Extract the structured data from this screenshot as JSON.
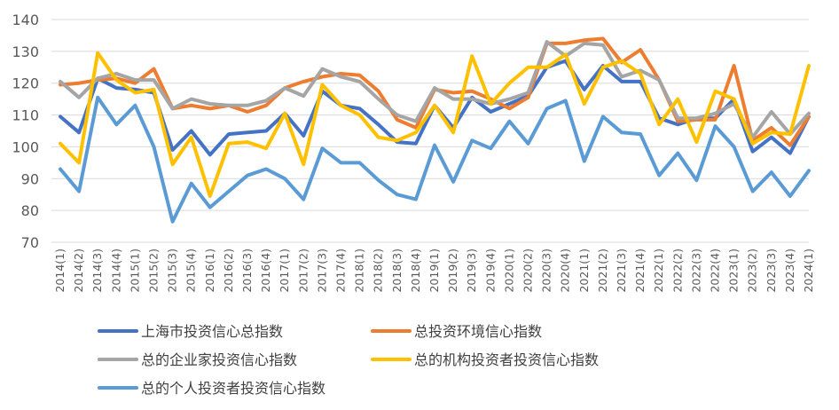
{
  "chart_data": {
    "type": "line",
    "title": "",
    "xlabel": "",
    "ylabel": "",
    "ylim": [
      70,
      140
    ],
    "yticks": [
      70,
      80,
      90,
      100,
      110,
      120,
      130,
      140
    ],
    "grid": "horizontal",
    "legend_position": "bottom",
    "categories": [
      "2014(1)",
      "2014(2)",
      "2014(3)",
      "2014(4)",
      "2015(1)",
      "2015(2)",
      "2015(3)",
      "2015(4)",
      "2016(1)",
      "2016(2)",
      "2016(3)",
      "2016(4)",
      "2017(1)",
      "2017(2)",
      "2017(3)",
      "2017(4)",
      "2018(1)",
      "2018(2)",
      "2018(3)",
      "2018(4)",
      "2019(1)",
      "2019(2)",
      "2019(3)",
      "2019(4)",
      "2020(1)",
      "2020(2)",
      "2020(3)",
      "2020(4)",
      "2021(1)",
      "2021(2)",
      "2021(3)",
      "2021(4)",
      "2022(1)",
      "2022(2)",
      "2022(3)",
      "2022(4)",
      "2023(1)",
      "2023(2)",
      "2023(3)",
      "2023(4)",
      "2024(1)"
    ],
    "series": [
      {
        "name": "上海市投资信心总指数",
        "color": "#4472C4",
        "values": [
          109.5,
          104.5,
          121.5,
          118.5,
          118,
          117,
          99,
          105,
          97.5,
          104,
          104.5,
          105,
          110.5,
          103.5,
          117.5,
          113,
          112,
          107,
          101.5,
          101,
          113,
          106,
          115.5,
          111,
          113.5,
          116,
          125,
          127,
          118,
          125.5,
          120.5,
          120.5,
          109,
          107,
          109,
          109,
          115,
          98.5,
          103,
          98,
          109.5
        ]
      },
      {
        "name": "总投资环境信心指数",
        "color": "#ED7D31",
        "values": [
          119.5,
          120,
          121,
          121.5,
          120,
          124.5,
          112,
          113,
          112,
          113,
          111,
          113,
          118.5,
          120.5,
          122,
          123,
          122.5,
          117.5,
          108.5,
          106,
          118,
          117,
          117.5,
          115,
          112,
          115.5,
          132.5,
          132.5,
          133.5,
          134,
          126.5,
          130.5,
          121,
          108,
          108.5,
          108.5,
          125.5,
          102,
          106,
          100.5,
          109.5
        ]
      },
      {
        "name": "总的企业家投资信心指数",
        "color": "#A5A5A5",
        "values": [
          120.5,
          115.5,
          121.5,
          123,
          121,
          121,
          112,
          115,
          113.5,
          113,
          113,
          114.5,
          118.5,
          116,
          124.5,
          122,
          120.5,
          115,
          110,
          108,
          118.5,
          115,
          115,
          113.5,
          115,
          117,
          133,
          128.5,
          132.5,
          132,
          122,
          124,
          121,
          109,
          109,
          110.5,
          113.5,
          103,
          111,
          104,
          110.5
        ]
      },
      {
        "name": "总的机构投资者投资信心指数",
        "color": "#FFC000",
        "values": [
          101,
          95,
          129.5,
          121,
          117,
          118,
          94.5,
          103,
          84.5,
          101,
          101.5,
          99.5,
          110.5,
          94.5,
          119.5,
          113,
          110,
          103,
          102,
          104.5,
          113,
          104.5,
          128.5,
          113.5,
          120,
          125,
          125,
          129,
          113.5,
          125,
          127,
          123,
          107,
          115,
          101.5,
          117.5,
          115,
          101,
          104.5,
          104,
          125.5
        ]
      },
      {
        "name": "总的个人投资者投资信心指数",
        "color": "#5B9BD5",
        "values": [
          93,
          86,
          115.5,
          107,
          113,
          100,
          76.5,
          88.5,
          81,
          86,
          91,
          93,
          90,
          83.5,
          99.5,
          95,
          95,
          89.5,
          85,
          83.5,
          100.5,
          89,
          102,
          99.5,
          108,
          101,
          112,
          114.5,
          95.5,
          109.5,
          104.5,
          104,
          91,
          98,
          89.5,
          106.5,
          100,
          86,
          92,
          84.5,
          92.5
        ]
      }
    ]
  }
}
